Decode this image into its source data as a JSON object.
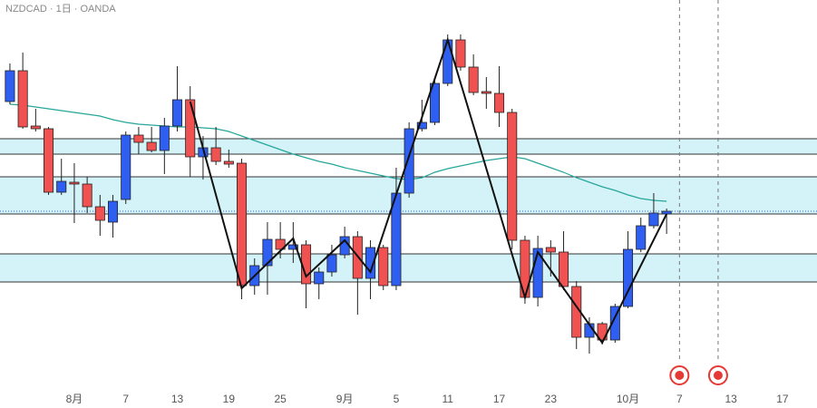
{
  "chart_data": {
    "type": "candlestick",
    "title": "NZDCAD · 1日 · OANDA",
    "xlim": [
      -0.77,
      62.68
    ],
    "ylim": [
      0.811,
      0.854
    ],
    "up_color": "#2f5ff0",
    "down_color": "#f05252",
    "open": [
      0.8428,
      0.8462,
      0.8401,
      0.8398,
      0.8328,
      0.8339,
      0.8337,
      0.8312,
      0.8295,
      0.832,
      0.8391,
      0.8383,
      0.8374,
      0.8401,
      0.843,
      0.8367,
      0.8377,
      0.8362,
      0.836,
      0.8225,
      0.8247,
      0.8276,
      0.8265,
      0.827,
      0.8227,
      0.824,
      0.8259,
      0.8279,
      0.8233,
      0.8267,
      0.8225,
      0.8327,
      0.8398,
      0.8405,
      0.8448,
      0.8496,
      0.8466,
      0.8439,
      0.8437,
      0.8416,
      0.8275,
      0.8212,
      0.8267,
      0.8262,
      0.8224,
      0.8168,
      0.8183,
      0.8165,
      0.8202,
      0.8265,
      0.8291,
      0.8304
    ],
    "high": [
      0.847,
      0.8482,
      0.842,
      0.84,
      0.8365,
      0.836,
      0.8345,
      0.8325,
      0.8325,
      0.8395,
      0.84,
      0.84,
      0.841,
      0.8467,
      0.8445,
      0.839,
      0.84,
      0.8375,
      0.8365,
      0.8255,
      0.8295,
      0.8295,
      0.8295,
      0.8275,
      0.8245,
      0.827,
      0.829,
      0.8285,
      0.8275,
      0.827,
      0.8355,
      0.8405,
      0.843,
      0.8455,
      0.8502,
      0.8502,
      0.848,
      0.8455,
      0.8467,
      0.842,
      0.828,
      0.828,
      0.8275,
      0.8285,
      0.823,
      0.819,
      0.8185,
      0.8205,
      0.8285,
      0.83,
      0.8327,
      0.831
    ],
    "low": [
      0.8425,
      0.8398,
      0.8395,
      0.8325,
      0.8325,
      0.8294,
      0.8305,
      0.828,
      0.8278,
      0.8315,
      0.837,
      0.8372,
      0.8348,
      0.8395,
      0.8345,
      0.8342,
      0.8358,
      0.8355,
      0.821,
      0.8215,
      0.8215,
      0.8255,
      0.825,
      0.82,
      0.821,
      0.8235,
      0.8255,
      0.8193,
      0.821,
      0.822,
      0.822,
      0.8322,
      0.8395,
      0.8402,
      0.8445,
      0.8462,
      0.8435,
      0.842,
      0.84,
      0.8265,
      0.8205,
      0.8202,
      0.8235,
      0.822,
      0.8155,
      0.815,
      0.816,
      0.8162,
      0.82,
      0.8262,
      0.8288,
      0.8282
    ],
    "close": [
      0.8462,
      0.84,
      0.8398,
      0.8328,
      0.834,
      0.8337,
      0.8312,
      0.8297,
      0.8318,
      0.8391,
      0.8383,
      0.8374,
      0.8401,
      0.843,
      0.8367,
      0.8377,
      0.8362,
      0.8359,
      0.8225,
      0.8247,
      0.8276,
      0.8265,
      0.827,
      0.8227,
      0.824,
      0.8259,
      0.8279,
      0.8233,
      0.8267,
      0.8225,
      0.8327,
      0.8398,
      0.8405,
      0.8448,
      0.8496,
      0.8466,
      0.8438,
      0.8437,
      0.8416,
      0.8275,
      0.8212,
      0.8266,
      0.8262,
      0.8224,
      0.8168,
      0.8183,
      0.8165,
      0.8202,
      0.8265,
      0.8291,
      0.8305,
      0.8307
    ],
    "ma": {
      "color": "#26a69a",
      "values": [
        0.8425,
        0.8424,
        0.8422,
        0.842,
        0.8418,
        0.8416,
        0.8414,
        0.8412,
        0.8408,
        0.8405,
        0.8403,
        0.8402,
        0.8401,
        0.84,
        0.84,
        0.8399,
        0.8398,
        0.8395,
        0.839,
        0.8385,
        0.838,
        0.8375,
        0.837,
        0.8366,
        0.8362,
        0.8359,
        0.8355,
        0.8352,
        0.8349,
        0.8346,
        0.8343,
        0.8342,
        0.8344,
        0.835,
        0.8354,
        0.8357,
        0.836,
        0.8363,
        0.8365,
        0.8367,
        0.8365,
        0.836,
        0.8355,
        0.835,
        0.8344,
        0.8339,
        0.8334,
        0.833,
        0.8325,
        0.8321,
        0.8319,
        0.8318
      ]
    },
    "zigzag": {
      "color": "#111111",
      "x": [
        14,
        18,
        22,
        23,
        26,
        28,
        34,
        40,
        41,
        46,
        51
      ],
      "values": [
        0.8428,
        0.8222,
        0.8277,
        0.8235,
        0.8275,
        0.824,
        0.8496,
        0.8212,
        0.8262,
        0.8162,
        0.8304
      ]
    },
    "zones": [
      [
        0.8387,
        0.837
      ],
      [
        0.8345,
        0.8304
      ],
      [
        0.826,
        0.8229
      ]
    ],
    "zone_color": "#d4f3f8",
    "event_x": [
      52,
      55
    ],
    "xticks": [
      {
        "value": 5,
        "label": "8月"
      },
      {
        "value": 9,
        "label": "7"
      },
      13,
      {
        "value": 17,
        "label": "19"
      },
      {
        "value": 21,
        "label": "25"
      },
      {
        "value": 26,
        "label": "9月"
      },
      {
        "value": 30,
        "label": "5"
      },
      {
        "value": 34,
        "label": "11"
      },
      {
        "value": 38,
        "label": "17"
      },
      {
        "value": 42,
        "label": "23"
      },
      {
        "value": 48,
        "label": "10月"
      },
      {
        "value": 52,
        "label": "7"
      },
      {
        "value": 56,
        "label": "13"
      },
      {
        "value": 60,
        "label": "17"
      }
    ]
  }
}
